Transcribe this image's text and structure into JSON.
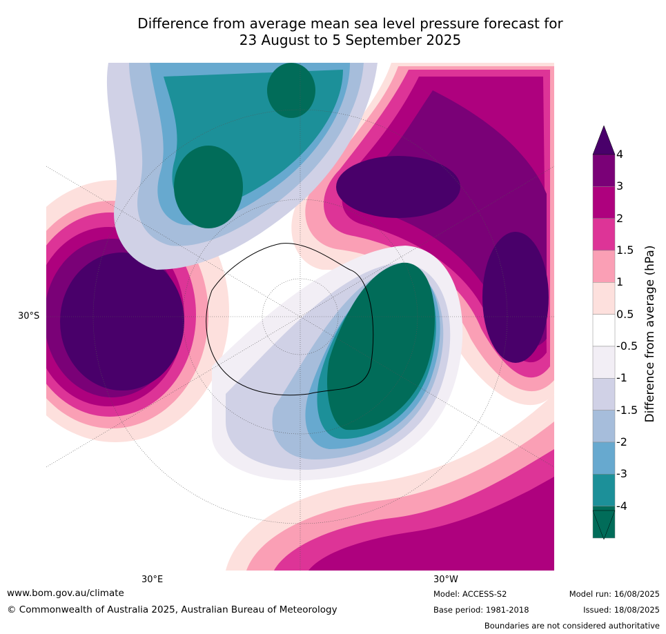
{
  "title_line1": "Difference from average mean sea level pressure forecast for",
  "title_line2": "23 August to 5 September 2025",
  "map": {
    "projection": "south polar stereographic",
    "lat_label": "30°S",
    "lon_label_left": "30°E",
    "lon_label_right": "30°W",
    "regions": [
      {
        "name": "positive anomaly Indian Ocean",
        "category": "high"
      },
      {
        "name": "positive anomaly south of New Zealand / South Pacific",
        "category": "high"
      },
      {
        "name": "positive anomaly Atlantic",
        "category": "high"
      },
      {
        "name": "negative anomaly New Zealand / Tasman",
        "category": "low"
      },
      {
        "name": "negative anomaly Antarctic Peninsula / Weddell Sea",
        "category": "low"
      }
    ]
  },
  "colorbar": {
    "title": "Difference from average (hPa)",
    "tick_labels": [
      "4",
      "3",
      "2",
      "1.5",
      "1",
      "0.5",
      "-0.5",
      "-1",
      "-1.5",
      "-2",
      "-3",
      "-4"
    ],
    "bin_colors": [
      "#7a0177",
      "#ae017e",
      "#dd3497",
      "#fa9fb5",
      "#fde0dd",
      "#ffffff",
      "#f2eef5",
      "#d0d1e6",
      "#a6bddb",
      "#67a9cf",
      "#1c9099",
      "#016c59"
    ],
    "extend_top_color": "#49006a",
    "extend_bottom_color": "#016c59"
  },
  "footer": {
    "url": "www.bom.gov.au/climate",
    "copyright": "© Commonwealth of Australia 2025, Australian Bureau of Meteorology",
    "model": "Model: ACCESS-S2",
    "base_period": "Base period: 1981-2018",
    "model_run": "Model run: 16/08/2025",
    "issued": "Issued: 18/08/2025",
    "disclaimer": "Boundaries are not considered authoritative"
  }
}
